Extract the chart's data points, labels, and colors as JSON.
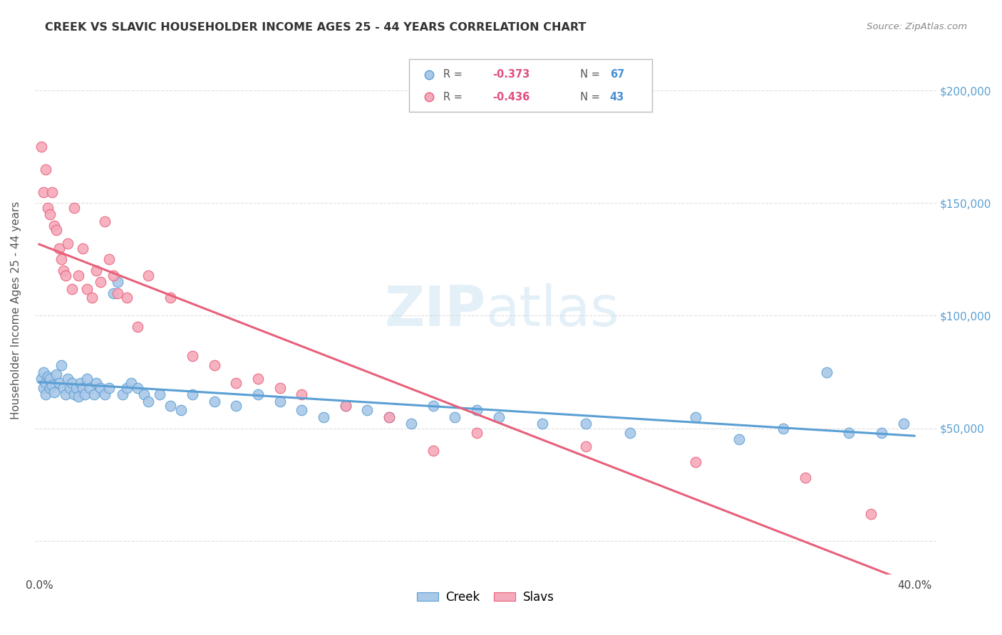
{
  "title": "CREEK VS SLAVIC HOUSEHOLDER INCOME AGES 25 - 44 YEARS CORRELATION CHART",
  "source_text": "Source: ZipAtlas.com",
  "ylabel": "Householder Income Ages 25 - 44 years",
  "xlabel_ticks": [
    "0.0%",
    "",
    "",
    "",
    "40.0%"
  ],
  "xlabel_tick_vals": [
    0.0,
    0.1,
    0.2,
    0.3,
    0.4
  ],
  "ylabel_ticks": [
    0,
    50000,
    100000,
    150000,
    200000
  ],
  "ylabel_tick_labels": [
    "",
    "$50,000",
    "$100,000",
    "$150,000",
    "$200,000"
  ],
  "xlim": [
    -0.002,
    0.41
  ],
  "ylim": [
    -15000,
    220000
  ],
  "creek_color": "#aac8e8",
  "slavic_color": "#f5aabb",
  "creek_line_color": "#5a9fd4",
  "slavic_line_color": "#e8607a",
  "background_color": "#ffffff",
  "grid_color": "#dedede",
  "creek_x": [
    0.001,
    0.002,
    0.002,
    0.003,
    0.003,
    0.004,
    0.005,
    0.005,
    0.006,
    0.007,
    0.008,
    0.009,
    0.01,
    0.011,
    0.012,
    0.013,
    0.014,
    0.015,
    0.016,
    0.017,
    0.018,
    0.019,
    0.02,
    0.021,
    0.022,
    0.023,
    0.025,
    0.026,
    0.028,
    0.03,
    0.032,
    0.034,
    0.036,
    0.038,
    0.04,
    0.042,
    0.045,
    0.048,
    0.05,
    0.055,
    0.06,
    0.065,
    0.07,
    0.08,
    0.09,
    0.1,
    0.11,
    0.12,
    0.13,
    0.14,
    0.15,
    0.16,
    0.17,
    0.18,
    0.19,
    0.2,
    0.21,
    0.23,
    0.25,
    0.27,
    0.3,
    0.32,
    0.34,
    0.36,
    0.37,
    0.385,
    0.395
  ],
  "creek_y": [
    72000,
    68000,
    75000,
    70000,
    65000,
    73000,
    68000,
    72000,
    69000,
    66000,
    74000,
    70000,
    78000,
    68000,
    65000,
    72000,
    68000,
    70000,
    65000,
    68000,
    64000,
    70000,
    68000,
    65000,
    72000,
    68000,
    65000,
    70000,
    68000,
    65000,
    68000,
    110000,
    115000,
    65000,
    68000,
    70000,
    68000,
    65000,
    62000,
    65000,
    60000,
    58000,
    65000,
    62000,
    60000,
    65000,
    62000,
    58000,
    55000,
    60000,
    58000,
    55000,
    52000,
    60000,
    55000,
    58000,
    55000,
    52000,
    52000,
    48000,
    55000,
    45000,
    50000,
    75000,
    48000,
    48000,
    52000
  ],
  "slavic_x": [
    0.001,
    0.002,
    0.003,
    0.004,
    0.005,
    0.006,
    0.007,
    0.008,
    0.009,
    0.01,
    0.011,
    0.012,
    0.013,
    0.015,
    0.016,
    0.018,
    0.02,
    0.022,
    0.024,
    0.026,
    0.028,
    0.03,
    0.032,
    0.034,
    0.036,
    0.04,
    0.045,
    0.05,
    0.06,
    0.07,
    0.08,
    0.09,
    0.1,
    0.11,
    0.12,
    0.14,
    0.16,
    0.18,
    0.2,
    0.25,
    0.3,
    0.35,
    0.38
  ],
  "slavic_y": [
    175000,
    155000,
    165000,
    148000,
    145000,
    155000,
    140000,
    138000,
    130000,
    125000,
    120000,
    118000,
    132000,
    112000,
    148000,
    118000,
    130000,
    112000,
    108000,
    120000,
    115000,
    142000,
    125000,
    118000,
    110000,
    108000,
    95000,
    118000,
    108000,
    82000,
    78000,
    70000,
    72000,
    68000,
    65000,
    60000,
    55000,
    40000,
    48000,
    42000,
    35000,
    28000,
    12000
  ]
}
